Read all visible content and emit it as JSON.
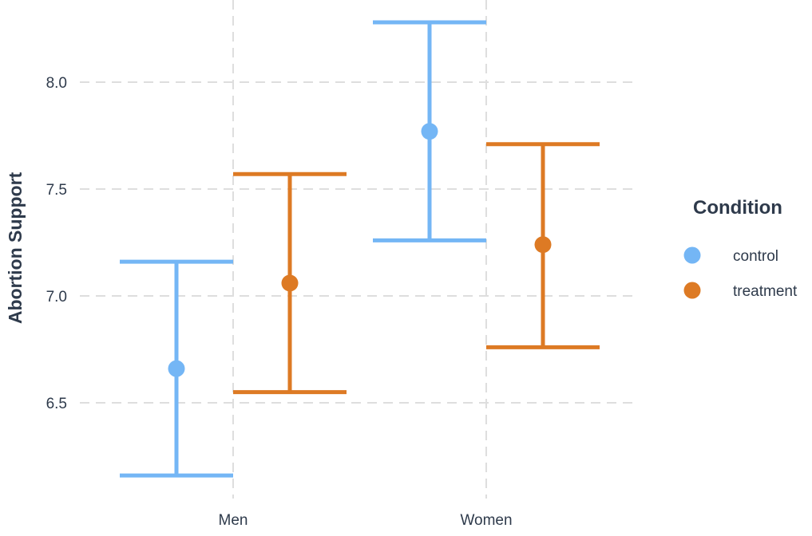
{
  "chart_data": {
    "type": "scatter",
    "subtype": "errorbar",
    "title": "",
    "xlabel": "",
    "ylabel": "Abortion Support",
    "categories": [
      "Men",
      "Women"
    ],
    "ylim": [
      6.0,
      8.35
    ],
    "yticks": [
      6.5,
      7.0,
      7.5,
      8.0
    ],
    "ytick_labels": [
      "6.5",
      "7.0",
      "7.5",
      "8.0"
    ],
    "grid": true,
    "grid_style": "dashed",
    "legend": {
      "title": "Condition",
      "placement": "right"
    },
    "series": [
      {
        "name": "control",
        "color": "#74b6f5",
        "values": [
          6.66,
          7.77
        ],
        "lower": [
          6.16,
          7.26
        ],
        "upper": [
          7.16,
          8.28
        ]
      },
      {
        "name": "treatment",
        "color": "#dd7a24",
        "values": [
          7.06,
          7.24
        ],
        "lower": [
          6.55,
          6.76
        ],
        "upper": [
          7.57,
          7.71
        ]
      }
    ]
  }
}
